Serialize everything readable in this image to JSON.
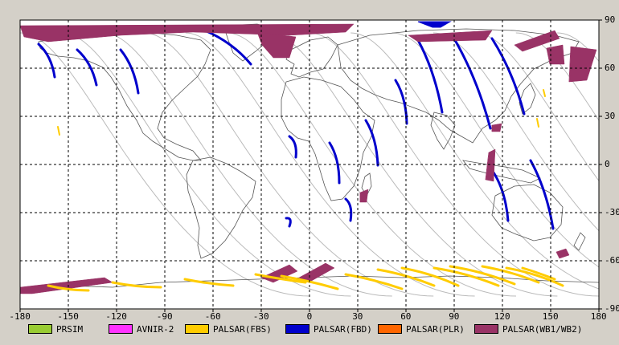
{
  "map": {
    "x_ticks": [
      "-180",
      "-150",
      "-120",
      "-90",
      "-60",
      "-30",
      "0",
      "30",
      "60",
      "90",
      "120",
      "150",
      "180"
    ],
    "y_ticks": [
      "90",
      "60",
      "30",
      "0",
      "-30",
      "-60",
      "-90"
    ],
    "x_range": [
      -180,
      180
    ],
    "y_range": [
      -90,
      90
    ]
  },
  "legend": [
    {
      "label": "PRSIM",
      "color": "#99cc33"
    },
    {
      "label": "AVNIR-2",
      "color": "#ff33ff"
    },
    {
      "label": "PALSAR(FBS)",
      "color": "#ffcc00"
    },
    {
      "label": "PALSAR(FBD)",
      "color": "#0000cc"
    },
    {
      "label": "PALSAR(PLR)",
      "color": "#ff6600"
    },
    {
      "label": "PALSAR(WB1/WB2)",
      "color": "#993366"
    }
  ],
  "colors": {
    "plot_bg": "#ffffff",
    "grid": "#000000",
    "coast": "#555555",
    "orbit": "#bbbbbb",
    "fbd": "#0000cc",
    "fbs": "#ffcc00",
    "wb": "#993366"
  }
}
